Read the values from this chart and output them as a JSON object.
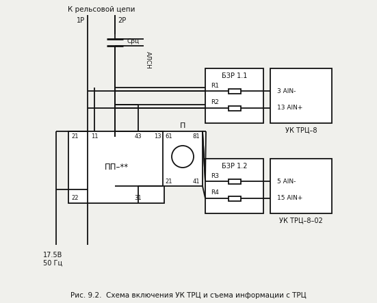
{
  "title": "Рис. 9.2.  Схема включения УК ТРЦ и съема информации с ТРЦ",
  "bg_color": "#f0f0ec",
  "line_color": "#111111",
  "label_top": "К рельсовой цепи",
  "label_1p": "1Р",
  "label_2p": "2Р",
  "label_src": "Срц",
  "label_alsn": "АЛСН",
  "label_pp": "ПП–**",
  "label_p": "П",
  "label_bzr11": "БЗР 1.1",
  "label_r1": "R1",
  "label_r2": "R2",
  "label_bzr12": "БЗР 1.2",
  "label_r3": "R3",
  "label_r4": "R4",
  "label_uktrc8": "УК ТРЦ–8",
  "label_uktrc802": "УК ТРЦ–8–02",
  "label_3ain": "3 AIN-",
  "label_13ain": "13 AIN+",
  "label_5ain": "5 AIN-",
  "label_15ain": "15 AIN+",
  "label_voltage": "17.5В\n50 Гц"
}
